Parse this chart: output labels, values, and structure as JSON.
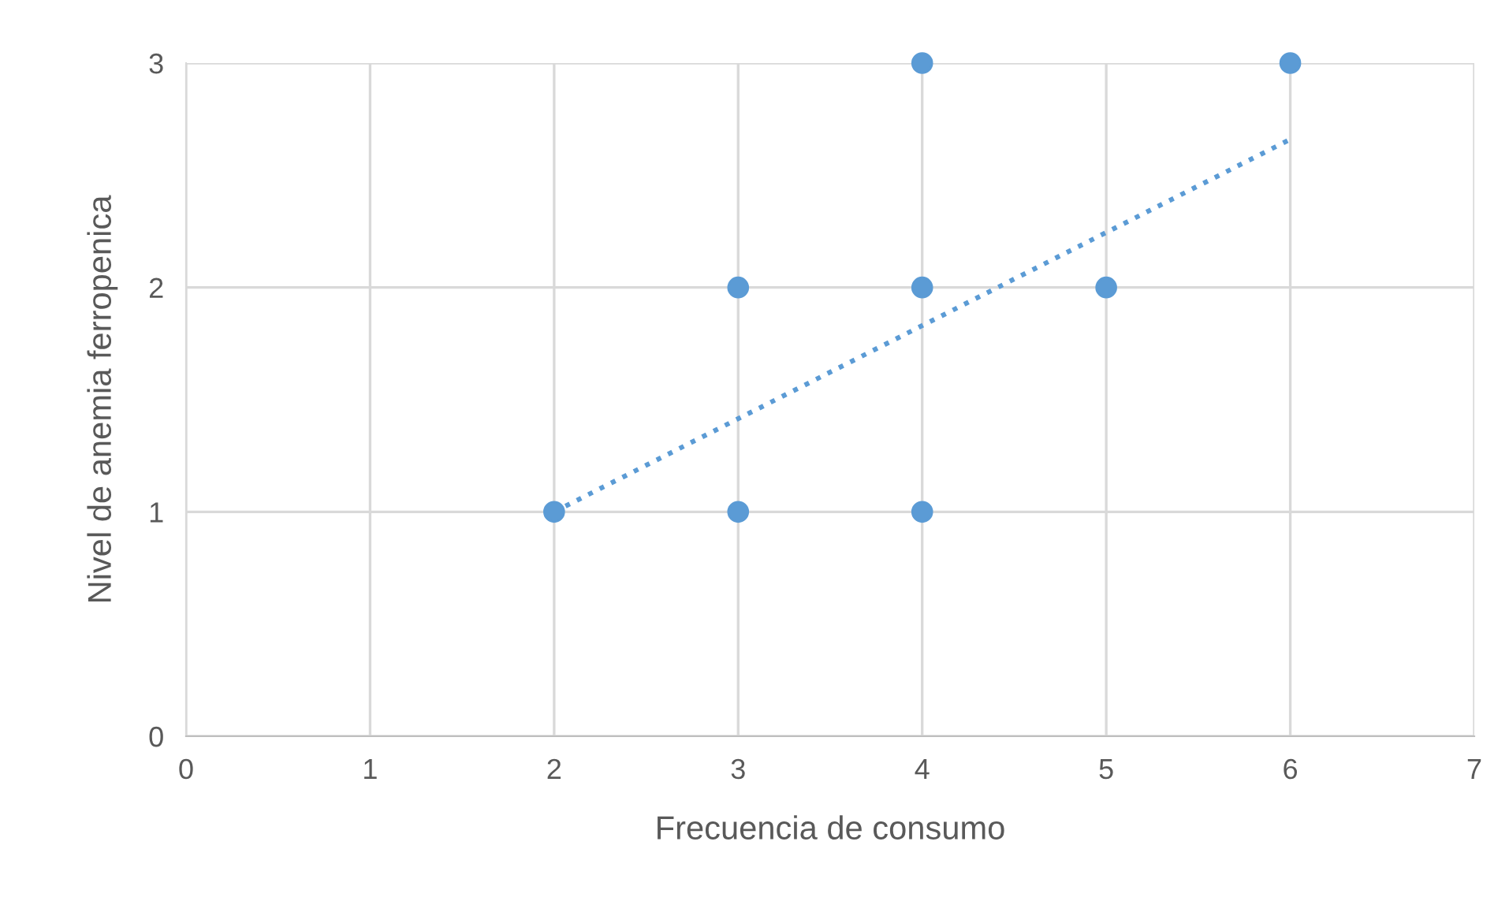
{
  "chart_data": {
    "type": "scatter",
    "xlabel": "Frecuencia de consumo",
    "ylabel": "Nivel de anemia ferropenica",
    "series": [
      {
        "color": "#5b9bd5",
        "x": [
          2,
          3,
          3,
          4,
          4,
          4,
          5,
          6
        ],
        "values": [
          1,
          1,
          2,
          1,
          2,
          3,
          2,
          3
        ],
        "marker": "circle"
      },
      {
        "type": "line",
        "color": "#5b9bd5",
        "x": [
          2,
          6
        ],
        "values": [
          1,
          2.66
        ],
        "line_style": "dotted",
        "marker": "none"
      }
    ],
    "xlim": [
      0,
      7
    ],
    "xticks": [
      0,
      1,
      2,
      3,
      4,
      5,
      6,
      7
    ],
    "ylim": [
      0,
      3
    ],
    "yticks": [
      0,
      1,
      2,
      3
    ],
    "grid": true
  }
}
